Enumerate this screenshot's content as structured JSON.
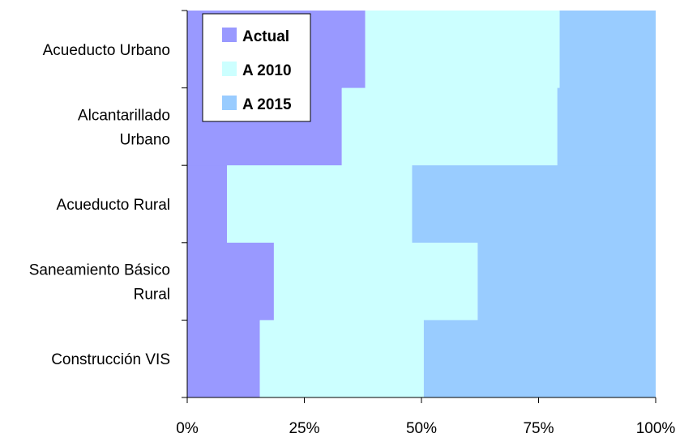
{
  "chart_data": {
    "type": "bar",
    "stacked": true,
    "orientation": "horizontal",
    "normalized_percent": true,
    "categories": [
      [
        "Acueducto Urbano"
      ],
      [
        "Alcantarillado",
        "Urbano"
      ],
      [
        "Acueducto Rural"
      ],
      [
        "Saneamiento Básico",
        "Rural"
      ],
      [
        "Construcción VIS"
      ]
    ],
    "series": [
      {
        "name": "Actual",
        "values": [
          38,
          33,
          8.5,
          18.5,
          15.5
        ]
      },
      {
        "name": "A 2010",
        "values": [
          41.5,
          46,
          39.5,
          43.5,
          35
        ]
      },
      {
        "name": "A 2015",
        "values": [
          20.5,
          21,
          52,
          38,
          49.5
        ]
      }
    ],
    "xlim": [
      0,
      100
    ],
    "x_ticks": [
      "0%",
      "25%",
      "50%",
      "75%",
      "100%"
    ],
    "colors": [
      "#9999ff",
      "#ccffff",
      "#99ccff"
    ],
    "legend": {
      "position": "top-left-inside"
    },
    "grid": false
  }
}
